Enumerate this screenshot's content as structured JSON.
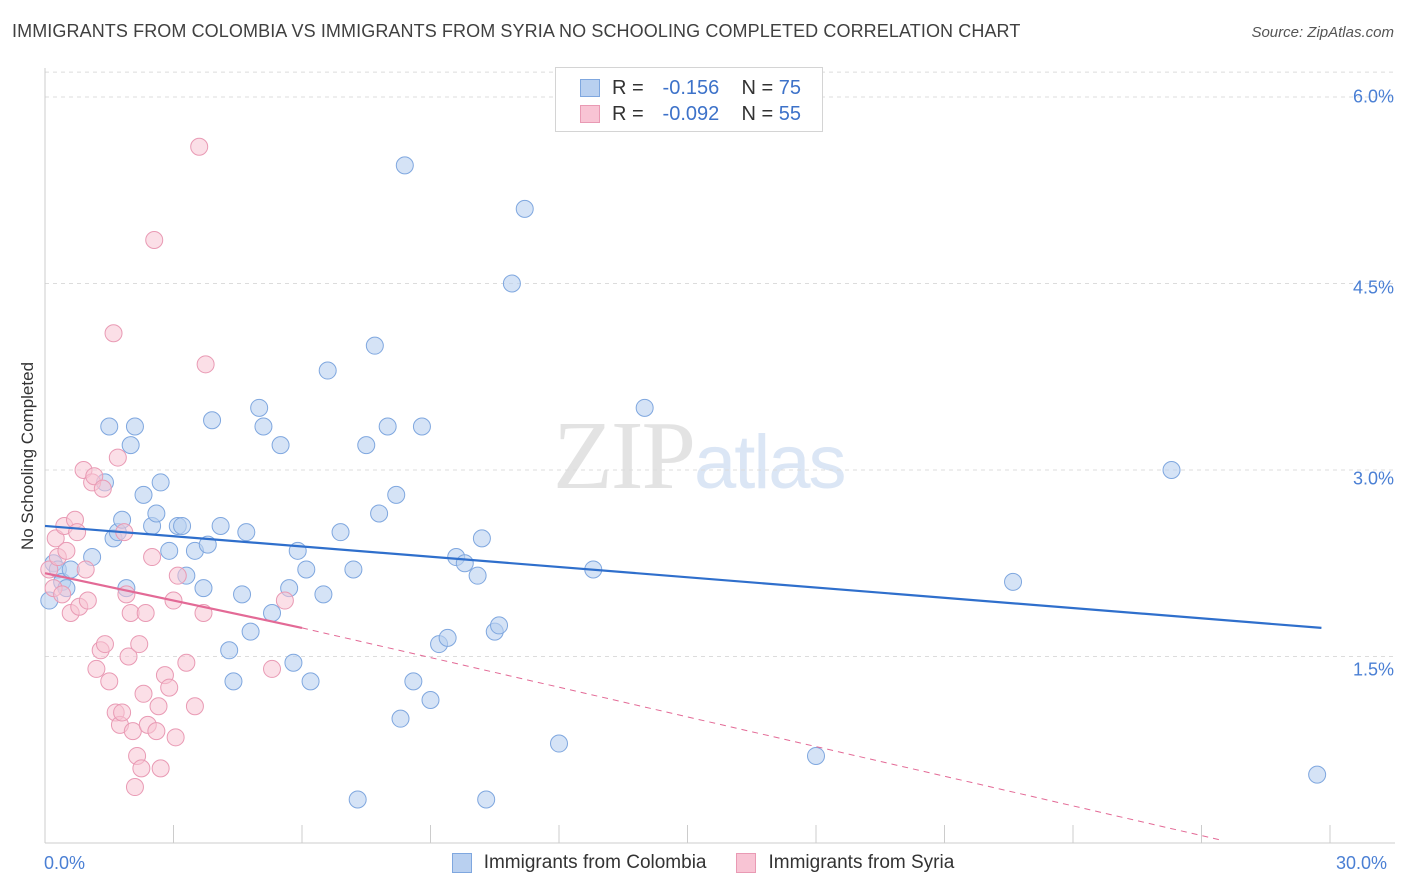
{
  "header": {
    "title": "IMMIGRANTS FROM COLOMBIA VS IMMIGRANTS FROM SYRIA NO SCHOOLING COMPLETED CORRELATION CHART",
    "source": "Source: ZipAtlas.com"
  },
  "watermark": {
    "zip": "ZIP",
    "atlas": "atlas"
  },
  "legend_top": [
    {
      "r_label": "R =",
      "r_value": "-0.156",
      "n_label": "N =",
      "n_value": "75"
    },
    {
      "r_label": "R =",
      "r_value": "-0.092",
      "n_label": "N =",
      "n_value": "55"
    }
  ],
  "colors": {
    "colombia_fill": "#b9d0f0",
    "colombia_stroke": "#7fa7df",
    "colombia_line": "#2f6fcc",
    "syria_fill": "#f8c4d4",
    "syria_stroke": "#e99ab4",
    "syria_line": "#e36a96",
    "grid": "#dcdcdc",
    "tick_text": "#4a7fd4"
  },
  "chart_data": {
    "type": "scatter",
    "title": "IMMIGRANTS FROM COLOMBIA VS IMMIGRANTS FROM SYRIA NO SCHOOLING COMPLETED CORRELATION CHART",
    "xlabel": "",
    "ylabel": "No Schooling Completed",
    "xlim": [
      0,
      30
    ],
    "ylim": [
      0,
      6.2
    ],
    "x_tick_labels": [
      "0.0%",
      "30.0%"
    ],
    "y_ticks": [
      1.5,
      3.0,
      4.5,
      6.0
    ],
    "y_tick_labels": [
      "1.5%",
      "3.0%",
      "4.5%",
      "6.0%"
    ],
    "grid": true,
    "legend": "bottom",
    "series": [
      {
        "name": "Immigrants from Colombia",
        "R": -0.156,
        "N": 75,
        "trend": {
          "x0": 0.0,
          "y0": 2.55,
          "x1": 29.8,
          "y1": 1.73
        },
        "points": [
          [
            0.1,
            1.95
          ],
          [
            0.2,
            2.25
          ],
          [
            0.3,
            2.2
          ],
          [
            0.4,
            2.1
          ],
          [
            0.5,
            2.05
          ],
          [
            0.6,
            2.2
          ],
          [
            1.1,
            2.3
          ],
          [
            1.4,
            2.9
          ],
          [
            1.5,
            3.35
          ],
          [
            1.6,
            2.45
          ],
          [
            1.7,
            2.5
          ],
          [
            1.8,
            2.6
          ],
          [
            1.9,
            2.05
          ],
          [
            2.0,
            3.2
          ],
          [
            2.1,
            3.35
          ],
          [
            2.3,
            2.8
          ],
          [
            2.5,
            2.55
          ],
          [
            2.6,
            2.65
          ],
          [
            2.7,
            2.9
          ],
          [
            2.9,
            2.35
          ],
          [
            3.1,
            2.55
          ],
          [
            3.2,
            2.55
          ],
          [
            3.3,
            2.15
          ],
          [
            3.5,
            2.35
          ],
          [
            3.7,
            2.05
          ],
          [
            3.8,
            2.4
          ],
          [
            3.9,
            3.4
          ],
          [
            4.1,
            2.55
          ],
          [
            4.3,
            1.55
          ],
          [
            4.4,
            1.3
          ],
          [
            4.6,
            2.0
          ],
          [
            4.7,
            2.5
          ],
          [
            4.8,
            1.7
          ],
          [
            5.0,
            3.5
          ],
          [
            5.1,
            3.35
          ],
          [
            5.3,
            1.85
          ],
          [
            5.5,
            3.2
          ],
          [
            5.7,
            2.05
          ],
          [
            5.8,
            1.45
          ],
          [
            5.9,
            2.35
          ],
          [
            6.1,
            2.2
          ],
          [
            6.2,
            1.3
          ],
          [
            6.5,
            2.0
          ],
          [
            6.6,
            3.8
          ],
          [
            6.9,
            2.5
          ],
          [
            7.2,
            2.2
          ],
          [
            7.3,
            0.35
          ],
          [
            7.5,
            3.2
          ],
          [
            7.7,
            4.0
          ],
          [
            7.8,
            2.65
          ],
          [
            8.0,
            3.35
          ],
          [
            8.2,
            2.8
          ],
          [
            8.3,
            1.0
          ],
          [
            8.4,
            5.45
          ],
          [
            8.6,
            1.3
          ],
          [
            8.8,
            3.35
          ],
          [
            9.0,
            1.15
          ],
          [
            9.2,
            1.6
          ],
          [
            9.4,
            1.65
          ],
          [
            9.6,
            2.3
          ],
          [
            9.8,
            2.25
          ],
          [
            10.1,
            2.15
          ],
          [
            10.2,
            2.45
          ],
          [
            10.3,
            0.35
          ],
          [
            10.5,
            1.7
          ],
          [
            10.6,
            1.75
          ],
          [
            10.9,
            4.5
          ],
          [
            11.2,
            5.1
          ],
          [
            12.0,
            0.8
          ],
          [
            12.8,
            2.2
          ],
          [
            14.0,
            3.5
          ],
          [
            18.0,
            0.7
          ],
          [
            22.6,
            2.1
          ],
          [
            26.3,
            3.0
          ],
          [
            29.7,
            0.55
          ]
        ]
      },
      {
        "name": "Immigrants from Syria",
        "R": -0.092,
        "N": 55,
        "trend": {
          "x0": 0.0,
          "y0": 2.17,
          "x1": 6.0,
          "y1": 1.73
        },
        "trend_extended": {
          "x0": 6.0,
          "y0": 1.73,
          "x1": 27.5,
          "y1": 0.02
        },
        "points": [
          [
            0.1,
            2.2
          ],
          [
            0.2,
            2.05
          ],
          [
            0.25,
            2.45
          ],
          [
            0.3,
            2.3
          ],
          [
            0.4,
            2.0
          ],
          [
            0.45,
            2.55
          ],
          [
            0.5,
            2.35
          ],
          [
            0.6,
            1.85
          ],
          [
            0.7,
            2.6
          ],
          [
            0.75,
            2.5
          ],
          [
            0.8,
            1.9
          ],
          [
            0.9,
            3.0
          ],
          [
            0.95,
            2.2
          ],
          [
            1.0,
            1.95
          ],
          [
            1.1,
            2.9
          ],
          [
            1.15,
            2.95
          ],
          [
            1.2,
            1.4
          ],
          [
            1.3,
            1.55
          ],
          [
            1.35,
            2.85
          ],
          [
            1.4,
            1.6
          ],
          [
            1.5,
            1.3
          ],
          [
            1.6,
            4.1
          ],
          [
            1.65,
            1.05
          ],
          [
            1.7,
            3.1
          ],
          [
            1.75,
            0.95
          ],
          [
            1.8,
            1.05
          ],
          [
            1.85,
            2.5
          ],
          [
            1.9,
            2.0
          ],
          [
            1.95,
            1.5
          ],
          [
            2.0,
            1.85
          ],
          [
            2.05,
            0.9
          ],
          [
            2.1,
            0.45
          ],
          [
            2.15,
            0.7
          ],
          [
            2.2,
            1.6
          ],
          [
            2.25,
            0.6
          ],
          [
            2.3,
            1.2
          ],
          [
            2.35,
            1.85
          ],
          [
            2.4,
            0.95
          ],
          [
            2.5,
            2.3
          ],
          [
            2.55,
            4.85
          ],
          [
            2.6,
            0.9
          ],
          [
            2.65,
            1.1
          ],
          [
            2.7,
            0.6
          ],
          [
            2.8,
            1.35
          ],
          [
            2.9,
            1.25
          ],
          [
            3.0,
            1.95
          ],
          [
            3.05,
            0.85
          ],
          [
            3.1,
            2.15
          ],
          [
            3.3,
            1.45
          ],
          [
            3.5,
            1.1
          ],
          [
            3.6,
            5.6
          ],
          [
            3.7,
            1.85
          ],
          [
            3.75,
            3.85
          ],
          [
            5.3,
            1.4
          ],
          [
            5.6,
            1.95
          ]
        ]
      }
    ]
  },
  "legend_bottom": [
    {
      "label": "Immigrants from Colombia"
    },
    {
      "label": "Immigrants from Syria"
    }
  ]
}
